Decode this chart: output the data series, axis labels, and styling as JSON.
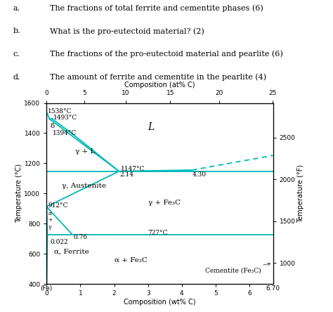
{
  "text_lines": [
    [
      "a.",
      "The fractions of total ferrite and cementite phases (6)"
    ],
    [
      "b.",
      "What is the pro-eutectoid material? (2)"
    ],
    [
      "c.",
      "The fractions of the pro-eutectoid material and pearlite (6)"
    ],
    [
      "d.",
      "The amount of ferrite and cementite in the pearlite (4)"
    ]
  ],
  "xlim": [
    0,
    6.7
  ],
  "ylim": [
    400,
    1600
  ],
  "xlabel": "Composition (wt% C)",
  "ylabel": "Temperature (°C)",
  "ylabel_right": "Temperature (°F)",
  "top_xlabel": "Composition (at% C)",
  "line_color": "#00B8B8",
  "bg_color": "#ffffff",
  "f_ticks": [
    1000,
    1500,
    2000,
    2500
  ],
  "at_ticks": [
    0,
    5,
    10,
    15,
    20,
    25
  ]
}
